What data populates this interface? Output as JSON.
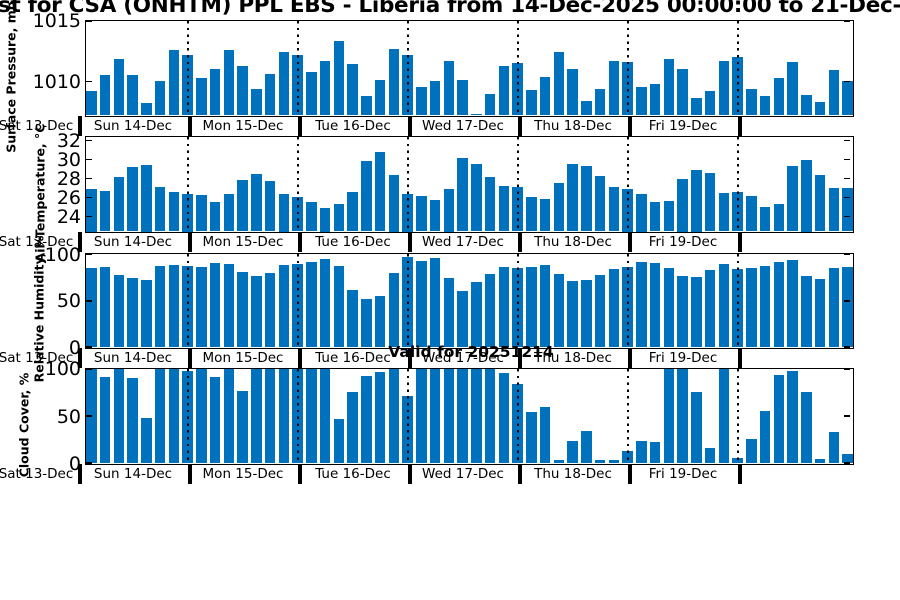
{
  "title": "st for CSA (ONHTM) PPL EBS  - Liberia from 14-Dec-2025 00:00:00 to 21-Dec-",
  "annotation": "Valid for 20251214",
  "colors": {
    "bar": "#0072BD",
    "axis": "#000000",
    "background": "#FFFFFF"
  },
  "x_axis": {
    "pre_label": "Sat 13-Dec",
    "day_labels": [
      "Sun 14-Dec",
      "Mon 15-Dec",
      "Tue 16-Dec",
      "Wed 17-Dec",
      "Thu 18-Dec",
      "Fri 19-Dec",
      ""
    ],
    "bars_per_day": 8,
    "step_hours": 3,
    "first_bar_time": "14-Dec-2025 03:00",
    "last_bar_time": "21-Dec-2025 00:00"
  },
  "chart_data": [
    {
      "type": "bar",
      "ylabel": "Surface Pressure, mb",
      "yticks": [
        1010,
        1015
      ],
      "ylim": [
        1007.2,
        1015
      ],
      "grid": "vertical-dotted-day-lines",
      "legend": "none",
      "values": [
        1009.2,
        1010.5,
        1011.8,
        1010.5,
        1008.2,
        1010.0,
        1012.6,
        1012.2,
        1010.3,
        1011.0,
        1012.6,
        1011.3,
        1009.4,
        1010.6,
        1012.4,
        1012.2,
        1010.8,
        1011.7,
        1013.3,
        1011.4,
        1008.8,
        1010.1,
        1012.7,
        1012.2,
        1009.5,
        1010.0,
        1011.7,
        1010.1,
        1007.3,
        1009.0,
        1011.3,
        1011.5,
        1009.3,
        1010.4,
        1012.4,
        1011.0,
        1008.4,
        1009.4,
        1011.7,
        1011.6,
        1009.5,
        1009.8,
        1011.8,
        1011.0,
        1008.6,
        1009.2,
        1011.7,
        1012.0,
        1009.4,
        1008.8,
        1010.3,
        1011.6,
        1008.9,
        1008.3,
        1010.9,
        1010.0
      ]
    },
    {
      "type": "bar",
      "ylabel": "Air Temperature, °C",
      "yticks": [
        24,
        26,
        28,
        30,
        32
      ],
      "ylim": [
        22.4,
        32.4
      ],
      "grid": "vertical-dotted-day-lines",
      "legend": "none",
      "values": [
        26.9,
        26.7,
        28.1,
        29.2,
        29.4,
        27.1,
        26.6,
        26.4,
        26.2,
        25.5,
        26.3,
        27.8,
        28.5,
        27.7,
        26.4,
        26.0,
        25.5,
        24.9,
        25.3,
        26.6,
        29.8,
        30.8,
        28.4,
        26.4,
        26.1,
        25.7,
        26.9,
        30.1,
        29.5,
        28.1,
        27.2,
        27.1,
        26.0,
        25.8,
        27.5,
        29.5,
        29.3,
        28.2,
        27.1,
        26.9,
        26.4,
        25.5,
        25.6,
        27.9,
        28.9,
        28.6,
        26.5,
        26.6,
        26.1,
        25.0,
        25.3,
        29.3,
        29.9,
        28.3,
        27.0,
        27.0
      ]
    },
    {
      "type": "bar",
      "ylabel": "Relative Humidity, %",
      "yticks": [
        0,
        50,
        100
      ],
      "ylim": [
        0,
        101
      ],
      "grid": "vertical-dotted-day-lines",
      "legend": "none",
      "values": [
        85,
        86,
        78,
        75,
        72,
        88,
        89,
        88,
        87,
        91,
        90,
        81,
        77,
        80,
        89,
        90,
        92,
        95,
        88,
        62,
        52,
        55,
        80,
        97,
        93,
        96,
        75,
        61,
        70,
        79,
        86,
        85,
        87,
        89,
        79,
        71,
        72,
        78,
        84,
        86,
        92,
        91,
        85,
        77,
        76,
        83,
        90,
        84,
        85,
        88,
        92,
        94,
        77,
        74,
        85,
        87
      ]
    },
    {
      "type": "bar",
      "ylabel": "Cloud Cover, %",
      "yticks": [
        0,
        50,
        100
      ],
      "ylim": [
        0,
        100.5
      ],
      "grid": "vertical-dotted-day-lines",
      "legend": "none",
      "values": [
        100,
        92,
        100,
        90,
        48,
        100,
        100,
        98,
        100,
        92,
        100,
        77,
        100,
        100,
        100,
        100,
        100,
        100,
        47,
        76,
        93,
        97,
        100,
        71,
        100,
        100,
        100,
        100,
        100,
        100,
        96,
        84,
        55,
        60,
        4,
        24,
        34,
        4,
        4,
        13,
        24,
        23,
        100,
        100,
        76,
        16,
        100,
        6,
        26,
        56,
        94,
        98,
        76,
        5,
        33,
        10
      ]
    }
  ]
}
